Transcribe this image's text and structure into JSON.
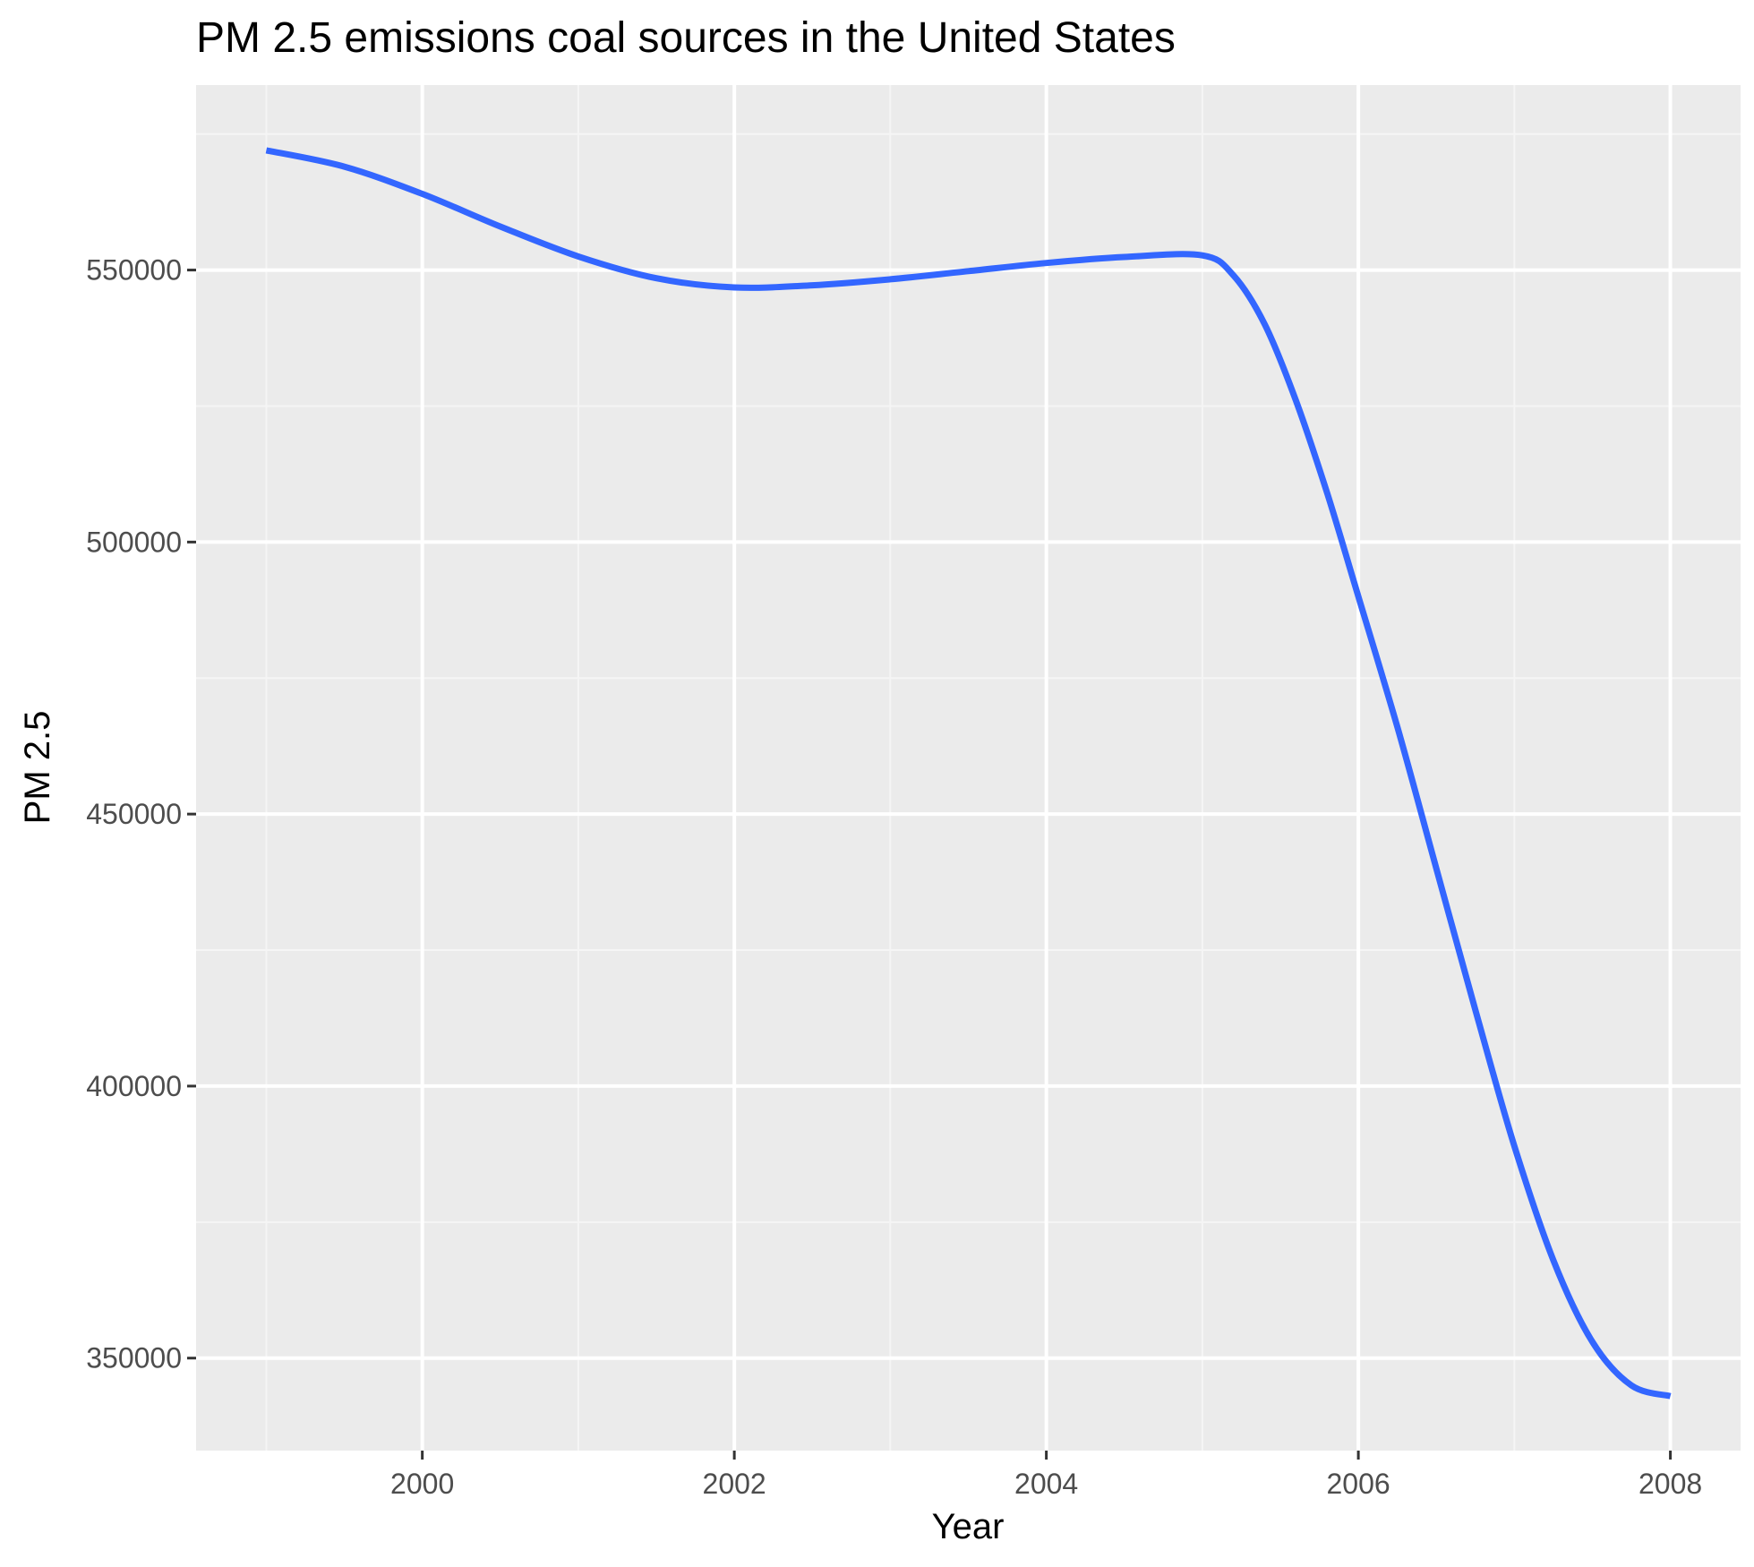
{
  "chart_data": {
    "type": "line",
    "title": "PM 2.5 emissions coal sources in the United States",
    "xlabel": "Year",
    "ylabel": "PM 2.5",
    "xlim": [
      1998.55,
      2008.45
    ],
    "ylim": [
      333000,
      584000
    ],
    "x_ticks": [
      2000,
      2002,
      2004,
      2006,
      2008
    ],
    "x_tick_labels": [
      "2000",
      "2002",
      "2004",
      "2006",
      "2008"
    ],
    "y_ticks": [
      350000,
      400000,
      450000,
      500000,
      550000
    ],
    "y_tick_labels": [
      "350000",
      "400000",
      "450000",
      "500000",
      "550000"
    ],
    "grid": true,
    "legend": "none",
    "colors": {
      "panel_background": "#ebebeb",
      "grid_major": "#ffffff",
      "grid_minor": "#f5f5f5",
      "line": "#3366ff",
      "tick_mark": "#333333"
    },
    "series": [
      {
        "x": [
          1999.0,
          1999.5,
          2000.0,
          2000.5,
          2001.0,
          2001.5,
          2002.0,
          2002.5,
          2003.0,
          2003.5,
          2004.0,
          2004.5,
          2005.0,
          2005.2,
          2005.4,
          2005.6,
          2005.8,
          2006.0,
          2006.25,
          2006.5,
          2006.75,
          2007.0,
          2007.25,
          2007.5,
          2007.75,
          2008.0
        ],
        "y": [
          572000,
          569000,
          564000,
          558000,
          552500,
          548500,
          546800,
          547200,
          548300,
          549800,
          551300,
          552400,
          552700,
          549000,
          540000,
          526000,
          509000,
          490000,
          466000,
          440000,
          414000,
          389000,
          368000,
          353000,
          345000,
          343000
        ]
      }
    ]
  }
}
